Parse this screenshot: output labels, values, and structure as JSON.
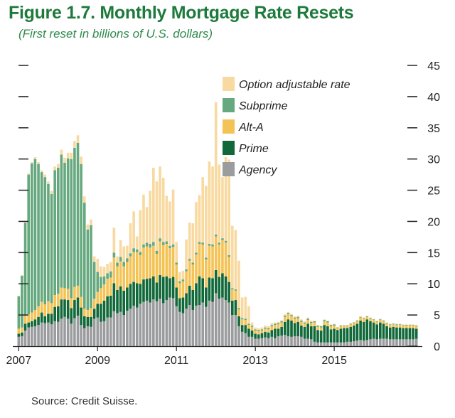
{
  "title": "Figure 1.7. Monthly Mortgage Rate Resets",
  "subtitle": "(First reset in billions of U.S. dollars)",
  "source": "Source: Credit Suisse.",
  "colors": {
    "title": "#1e7a3c",
    "Option adjustable rate": "#f8d9a0",
    "Subprime": "#66a97f",
    "Alt-A": "#f4c356",
    "Prime": "#11693a",
    "Agency": "#9b9c9e"
  },
  "chart_data": {
    "type": "bar",
    "stacked": true,
    "x_start": "2007-01",
    "x_ticks": [
      "2007",
      "2009",
      "2011",
      "2013",
      "2015"
    ],
    "y_ticks": [
      "0",
      "5",
      "10",
      "15",
      "20",
      "25",
      "30",
      "35",
      "40",
      "45"
    ],
    "ylim": [
      0,
      45
    ],
    "legend_position": "top-right",
    "legend": [
      "Option adjustable rate",
      "Subprime",
      "Alt-A",
      "Prime",
      "Agency"
    ],
    "series": [
      {
        "name": "Agency",
        "values": [
          1.5,
          1.6,
          2.5,
          3.0,
          3.1,
          3.2,
          3.4,
          3.8,
          3.7,
          3.8,
          3.5,
          4.0,
          3.9,
          4.4,
          4.7,
          4.4,
          3.6,
          4.5,
          4.9,
          3.4,
          2.9,
          3.2,
          3.1,
          4.4,
          4.6,
          3.9,
          4.0,
          4.6,
          4.6,
          5.6,
          5.3,
          5.5,
          5.0,
          5.7,
          6.0,
          6.5,
          6.2,
          6.8,
          7.1,
          7.3,
          7.0,
          7.5,
          7.2,
          7.6,
          6.9,
          7.4,
          7.8,
          7.7,
          6.4,
          5.5,
          5.3,
          6.0,
          6.6,
          5.8,
          6.5,
          6.6,
          7.0,
          6.3,
          7.3,
          7.1,
          8.5,
          7.6,
          7.8,
          7.4,
          7.0,
          5.0,
          5.0,
          3.2,
          2.3,
          2.1,
          1.5,
          1.5,
          1.2,
          1.2,
          1.3,
          1.4,
          1.3,
          1.5,
          1.3,
          1.6,
          1.7,
          1.8,
          1.6,
          1.5,
          1.6,
          1.6,
          1.5,
          1.2,
          1.2,
          1.1,
          0.7,
          0.6,
          0.6,
          0.6,
          0.6,
          0.6,
          0.6,
          0.6,
          0.6,
          0.6,
          0.7,
          0.7,
          0.8,
          0.9,
          1.0,
          0.9,
          1.0,
          1.1,
          1.2,
          1.1,
          1.2,
          1.2,
          1.2,
          1.1,
          1.1,
          1.1,
          1.1,
          1.1,
          1.1,
          1.1,
          1.1,
          1.2
        ]
      },
      {
        "name": "Prime",
        "values": [
          0.5,
          0.6,
          1.1,
          0.8,
          0.9,
          1.1,
          1.3,
          1.6,
          1.1,
          1.4,
          1.7,
          2.3,
          2.5,
          3.1,
          2.8,
          3.0,
          2.5,
          2.9,
          2.9,
          2.8,
          1.9,
          1.5,
          1.6,
          1.6,
          2.2,
          2.9,
          3.3,
          3.4,
          3.5,
          4.5,
          3.7,
          4.1,
          3.9,
          3.7,
          4.0,
          3.8,
          3.9,
          3.2,
          3.6,
          3.5,
          3.9,
          3.7,
          3.0,
          3.8,
          4.2,
          3.8,
          3.1,
          3.4,
          3.0,
          2.2,
          2.5,
          2.5,
          3.1,
          3.2,
          3.6,
          4.6,
          3.9,
          3.1,
          3.7,
          3.8,
          3.7,
          3.5,
          3.9,
          3.8,
          3.3,
          2.3,
          2.4,
          1.6,
          1.1,
          1.3,
          1.3,
          1.0,
          0.8,
          0.7,
          0.8,
          0.9,
          0.9,
          1.1,
          1.5,
          1.2,
          1.4,
          2.1,
          2.7,
          2.6,
          2.1,
          2.3,
          1.8,
          1.9,
          2.4,
          2.1,
          2.5,
          2.0,
          1.9,
          2.8,
          2.6,
          2.1,
          2.2,
          2.0,
          2.2,
          2.3,
          2.2,
          2.4,
          2.5,
          2.7,
          3.1,
          3.0,
          3.3,
          2.9,
          2.6,
          2.4,
          2.6,
          2.4,
          2.0,
          1.9,
          2.0,
          1.9,
          1.9,
          1.8,
          1.8,
          1.8,
          1.8,
          1.6
        ]
      },
      {
        "name": "Alt-A",
        "values": [
          0.8,
          0.8,
          1.3,
          1.3,
          1.4,
          1.5,
          1.7,
          1.7,
          1.9,
          2.0,
          1.7,
          1.9,
          2.0,
          1.9,
          1.8,
          1.8,
          1.6,
          2.1,
          1.9,
          1.7,
          1.2,
          1.1,
          1.4,
          1.6,
          1.9,
          2.5,
          2.6,
          2.8,
          2.9,
          4.1,
          3.8,
          4.0,
          3.9,
          4.1,
          4.4,
          4.8,
          5.0,
          4.6,
          5.1,
          5.2,
          4.9,
          4.9,
          4.6,
          5.4,
          5.1,
          5.2,
          4.8,
          4.8,
          3.7,
          2.4,
          2.6,
          3.5,
          4.0,
          4.1,
          4.6,
          5.2,
          5.4,
          4.5,
          5.1,
          5.1,
          5.4,
          5.2,
          5.3,
          5.4,
          4.0,
          1.8,
          1.5,
          1.1,
          0.9,
          0.8,
          0.6,
          0.6,
          0.5,
          0.5,
          0.4,
          0.5,
          0.5,
          0.6,
          0.6,
          0.7,
          0.7,
          0.8,
          0.8,
          0.7,
          0.7,
          0.6,
          0.6,
          0.5,
          0.6,
          0.5,
          0.6,
          0.5,
          0.5,
          0.6,
          0.6,
          0.5,
          0.5,
          0.3,
          0.4,
          0.3,
          0.3,
          0.4,
          0.4,
          0.4,
          0.5,
          0.5,
          0.4,
          0.4,
          0.4,
          0.4,
          0.4,
          0.4,
          0.4,
          0.4,
          0.4,
          0.4,
          0.4,
          0.4,
          0.4,
          0.4,
          0.4,
          0.4
        ]
      },
      {
        "name": "Subprime",
        "values": [
          5.2,
          8.3,
          14.9,
          22.4,
          23.9,
          24.2,
          22.8,
          20.8,
          20.4,
          18.8,
          17.5,
          20.0,
          20.2,
          21.3,
          20.1,
          20.9,
          22.3,
          22.3,
          22.9,
          21.3,
          17.0,
          12.9,
          13.3,
          5.9,
          3.2,
          1.8,
          1.3,
          0.9,
          1.0,
          0.8,
          0.6,
          0.7,
          0.7,
          0.6,
          0.5,
          0.6,
          0.4,
          0.5,
          0.5,
          0.6,
          0.6,
          0.6,
          0.5,
          0.5,
          0.5,
          0.4,
          0.4,
          0.4,
          0.3,
          0.3,
          0.3,
          0.3,
          0.3,
          0.3,
          0.3,
          0.3,
          0.3,
          0.3,
          0.3,
          0.3,
          0.3,
          0.3,
          0.3,
          0.3,
          0.3,
          0.2,
          0.2,
          0.2,
          0.2,
          0.2,
          0.2,
          0.2,
          0.2,
          0.2,
          0.2,
          0.2,
          0.2,
          0.2,
          0.2,
          0.2,
          0.2,
          0.2,
          0.2,
          0.2,
          0.2,
          0.2,
          0.2,
          0.2,
          0.2,
          0.2,
          0.2,
          0.2,
          0.2,
          0.2,
          0.2,
          0.2,
          0.2,
          0.1,
          0.1,
          0.1,
          0.1,
          0.1,
          0.1,
          0.1,
          0.1,
          0.1,
          0.1,
          0.1,
          0.1,
          0.1,
          0.1,
          0.1,
          0.1,
          0.1,
          0.1,
          0.1,
          0.1,
          0.1,
          0.1,
          0.1,
          0.1,
          0.1
        ]
      },
      {
        "name": "Option adjustable rate",
        "values": [
          0.1,
          0.1,
          0.1,
          0.2,
          0.2,
          0.3,
          0.3,
          0.3,
          0.4,
          0.4,
          0.5,
          0.6,
          0.6,
          0.8,
          0.8,
          0.9,
          1.0,
          1.1,
          1.2,
          1.2,
          1.0,
          0.8,
          0.9,
          0.9,
          2.1,
          1.7,
          1.5,
          1.5,
          1.5,
          4.0,
          1.0,
          2.7,
          2.5,
          2.0,
          4.8,
          5.9,
          2.1,
          6.7,
          8.0,
          5.7,
          8.5,
          11.9,
          11.1,
          11.5,
          10.3,
          7.3,
          7.1,
          8.8,
          3.3,
          1.5,
          1.4,
          4.8,
          5.8,
          6.3,
          8.1,
          7.5,
          10.5,
          11.5,
          13.2,
          12.5,
          21.2,
          12.5,
          9.8,
          13.4,
          15.3,
          10.0,
          9.5,
          7.6,
          3.3,
          3.5,
          2.8,
          0.5,
          0.3,
          0.3,
          0.3,
          0.3,
          0.3,
          0.3,
          0.2,
          0.2,
          0.2,
          0.2,
          0.2,
          0.2,
          0.2,
          0.2,
          0.2,
          0.2,
          0.2,
          0.2,
          0.1,
          0.1,
          0.1,
          0.1,
          0.1,
          0.1,
          0.1,
          0.1,
          0.1,
          0.1,
          0.1,
          0.1,
          0.1,
          0.1,
          0.1,
          0.1,
          0.1,
          0.1,
          0.1,
          0.1,
          0.1,
          0.1,
          0.1,
          0.1,
          0.1,
          0.1,
          0.1,
          0.1,
          0.1,
          0.1,
          0.1,
          0.1
        ]
      }
    ]
  }
}
